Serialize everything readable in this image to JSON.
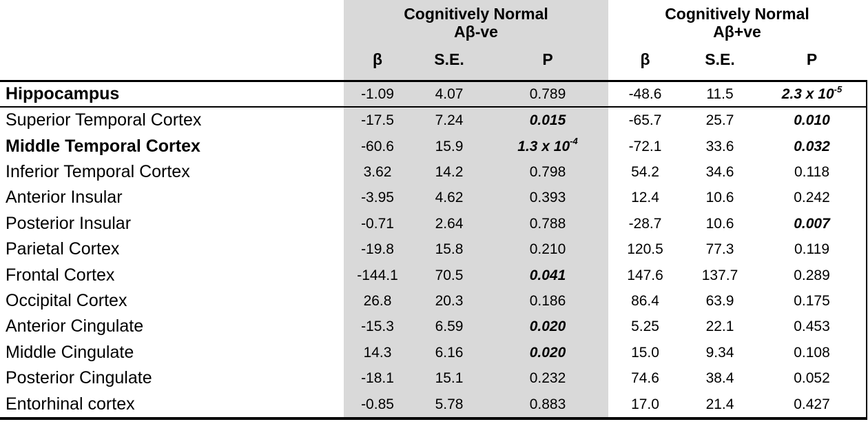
{
  "table": {
    "groups": [
      {
        "title": "Cognitively Normal",
        "subtitle": "Aβ-ve",
        "columns": [
          "β",
          "S.E.",
          "P"
        ]
      },
      {
        "title": "Cognitively Normal",
        "subtitle": "Aβ+ve",
        "columns": [
          "β",
          "S.E.",
          "P"
        ]
      }
    ],
    "colors": {
      "shaded_group_bg": "#d9d9d9",
      "text": "#000000"
    },
    "rows": [
      {
        "region": "Hippocampus",
        "region_bold": true,
        "values": [
          {
            "text": "-1.09"
          },
          {
            "text": "4.07"
          },
          {
            "text": "0.789"
          },
          {
            "text": "-48.6"
          },
          {
            "text": "11.5"
          },
          {
            "text": "2.3 x 10",
            "sup": "-5",
            "sig": true
          }
        ]
      },
      {
        "region": "Superior Temporal Cortex",
        "region_bold": false,
        "values": [
          {
            "text": "-17.5"
          },
          {
            "text": "7.24"
          },
          {
            "text": "0.015",
            "sig": true
          },
          {
            "text": "-65.7"
          },
          {
            "text": "25.7"
          },
          {
            "text": "0.010",
            "sig": true
          }
        ]
      },
      {
        "region": "Middle Temporal Cortex",
        "region_bold": true,
        "values": [
          {
            "text": "-60.6"
          },
          {
            "text": "15.9"
          },
          {
            "text": "1.3 x 10",
            "sup": "-4",
            "sig": true
          },
          {
            "text": "-72.1"
          },
          {
            "text": "33.6"
          },
          {
            "text": "0.032",
            "sig": true
          }
        ]
      },
      {
        "region": "Inferior Temporal Cortex",
        "region_bold": false,
        "values": [
          {
            "text": "3.62"
          },
          {
            "text": "14.2"
          },
          {
            "text": "0.798"
          },
          {
            "text": "54.2"
          },
          {
            "text": "34.6"
          },
          {
            "text": "0.118"
          }
        ]
      },
      {
        "region": "Anterior Insular",
        "region_bold": false,
        "values": [
          {
            "text": "-3.95"
          },
          {
            "text": "4.62"
          },
          {
            "text": "0.393"
          },
          {
            "text": "12.4"
          },
          {
            "text": "10.6"
          },
          {
            "text": "0.242"
          }
        ]
      },
      {
        "region": "Posterior Insular",
        "region_bold": false,
        "values": [
          {
            "text": "-0.71"
          },
          {
            "text": "2.64"
          },
          {
            "text": "0.788"
          },
          {
            "text": "-28.7"
          },
          {
            "text": "10.6"
          },
          {
            "text": "0.007",
            "sig": true
          }
        ]
      },
      {
        "region": "Parietal Cortex",
        "region_bold": false,
        "values": [
          {
            "text": "-19.8"
          },
          {
            "text": "15.8"
          },
          {
            "text": "0.210"
          },
          {
            "text": "120.5"
          },
          {
            "text": "77.3"
          },
          {
            "text": "0.119"
          }
        ]
      },
      {
        "region": "Frontal Cortex",
        "region_bold": false,
        "values": [
          {
            "text": "-144.1"
          },
          {
            "text": "70.5"
          },
          {
            "text": "0.041",
            "sig": true
          },
          {
            "text": "147.6"
          },
          {
            "text": "137.7"
          },
          {
            "text": "0.289"
          }
        ]
      },
      {
        "region": "Occipital Cortex",
        "region_bold": false,
        "values": [
          {
            "text": "26.8"
          },
          {
            "text": "20.3"
          },
          {
            "text": "0.186"
          },
          {
            "text": "86.4"
          },
          {
            "text": "63.9"
          },
          {
            "text": "0.175"
          }
        ]
      },
      {
        "region": "Anterior Cingulate",
        "region_bold": false,
        "values": [
          {
            "text": "-15.3"
          },
          {
            "text": "6.59"
          },
          {
            "text": "0.020",
            "sig": true
          },
          {
            "text": "5.25"
          },
          {
            "text": "22.1"
          },
          {
            "text": "0.453"
          }
        ]
      },
      {
        "region": "Middle Cingulate",
        "region_bold": false,
        "values": [
          {
            "text": "14.3"
          },
          {
            "text": "6.16"
          },
          {
            "text": "0.020",
            "sig": true
          },
          {
            "text": "15.0"
          },
          {
            "text": "9.34"
          },
          {
            "text": "0.108"
          }
        ]
      },
      {
        "region": "Posterior Cingulate",
        "region_bold": false,
        "values": [
          {
            "text": "-18.1"
          },
          {
            "text": "15.1"
          },
          {
            "text": "0.232"
          },
          {
            "text": "74.6"
          },
          {
            "text": "38.4"
          },
          {
            "text": "0.052"
          }
        ]
      },
      {
        "region": "Entorhinal cortex",
        "region_bold": false,
        "values": [
          {
            "text": "-0.85"
          },
          {
            "text": "5.78"
          },
          {
            "text": "0.883"
          },
          {
            "text": "17.0"
          },
          {
            "text": "21.4"
          },
          {
            "text": "0.427"
          }
        ]
      }
    ]
  }
}
